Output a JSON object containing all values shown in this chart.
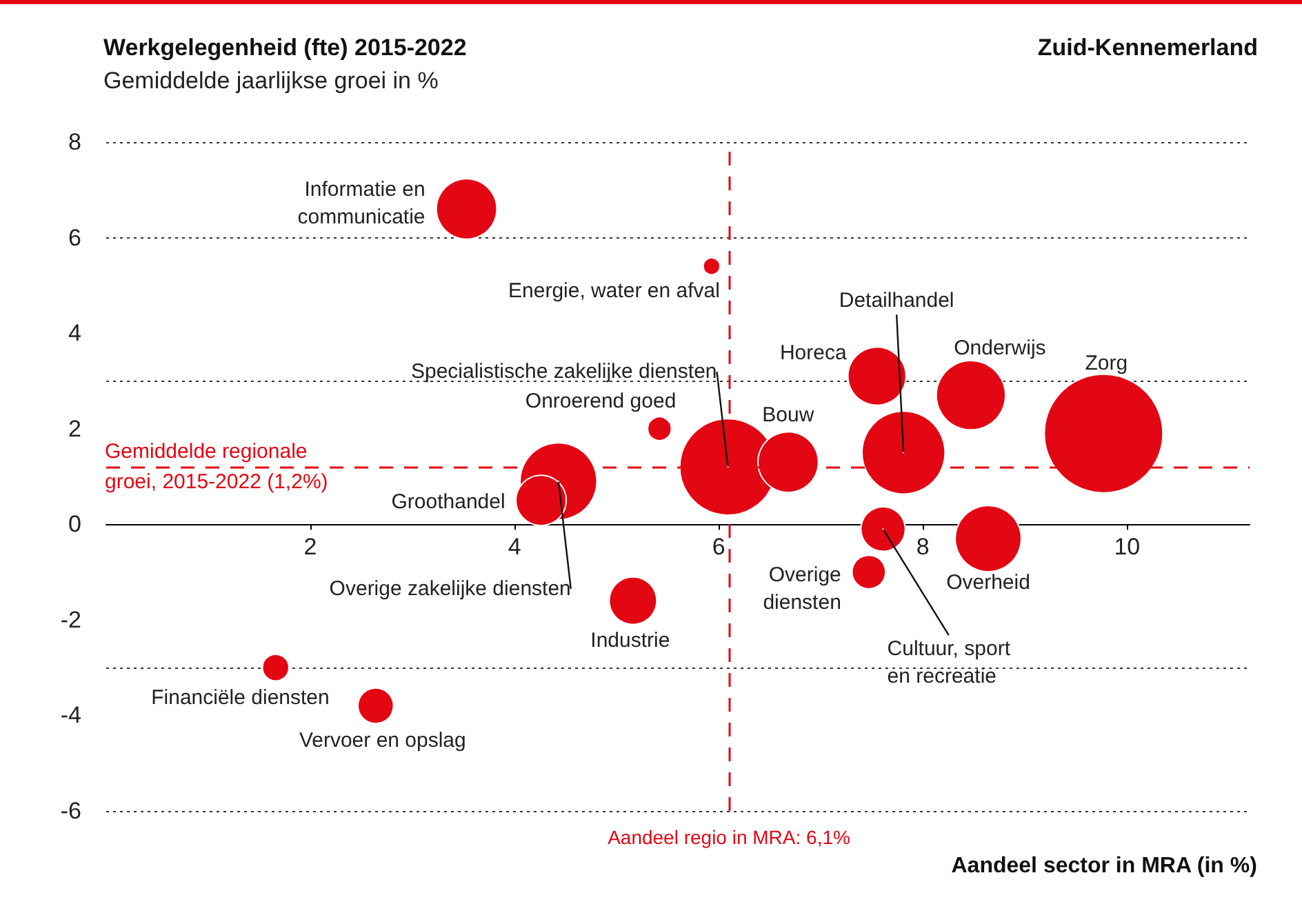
{
  "chart_data": {
    "type": "bubble",
    "title": "Werkgelegenheid (fte) 2015-2022",
    "ylabel": "Gemiddelde jaarlijkse groei in %",
    "xlabel": "Aandeel sector in MRA (in %)",
    "x": [
      3.53,
      5.93,
      7.55,
      7.81,
      8.47,
      9.77,
      5.42,
      6.09,
      6.68,
      4.43,
      4.26,
      7.47,
      7.61,
      8.64,
      5.16,
      1.66,
      2.64
    ],
    "series": [
      {
        "color": "#e30613",
        "values": [
          6.6,
          5.4,
          3.1,
          1.5,
          2.7,
          1.9,
          2.0,
          1.2,
          1.3,
          0.9,
          0.5,
          -1.0,
          -0.1,
          -0.3,
          -1.6,
          -3.0,
          -3.8
        ],
        "sizes": [
          0.26,
          0.02,
          0.24,
          0.49,
          0.34,
          1,
          0.04,
          0.66,
          0.26,
          0.42,
          0.18,
          0.08,
          0.14,
          0.31,
          0.16,
          0.05,
          0.09
        ]
      }
    ],
    "xlim": [
      0,
      11.2
    ],
    "xticks": [
      2,
      4,
      6,
      8,
      10
    ],
    "ylim": [
      -6,
      8
    ],
    "yticks": [
      -6,
      -4,
      -2,
      0,
      2,
      4,
      6,
      8
    ],
    "grid": "y",
    "ref_lines": [
      {
        "axis": "y",
        "value": 1.2,
        "label": "Gemiddelde regionale groei, 2015-2022 (1,2%)",
        "color": "#e30613",
        "line_style": "dashed"
      },
      {
        "axis": "x",
        "value": 6.1,
        "label": "Aandeel regio in MRA: 6,1%",
        "color": "#e30613",
        "line_style": "dashed"
      }
    ],
    "annotations": [
      "Zuid-Kennemerland",
      {
        "text": "Informatie en communicatie",
        "x": 3.53,
        "y": 6.6
      },
      {
        "text": "Energie, water en afval",
        "x": 5.93,
        "y": 5.4
      },
      {
        "text": "Horeca",
        "x": 7.55,
        "y": 3.1
      },
      {
        "text": "Detailhandel",
        "x": 7.81,
        "y": 1.5
      },
      {
        "text": "Onderwijs",
        "x": 8.47,
        "y": 2.7
      },
      {
        "text": "Zorg",
        "x": 9.77,
        "y": 1.9
      },
      {
        "text": "Onroerend goed",
        "x": 5.42,
        "y": 2.0
      },
      {
        "text": "Specialistische zakelijke diensten",
        "x": 6.09,
        "y": 1.2
      },
      {
        "text": "Bouw",
        "x": 6.68,
        "y": 1.3
      },
      {
        "text": "Overige zakelijke diensten",
        "x": 4.43,
        "y": 0.9
      },
      {
        "text": "Groothandel",
        "x": 4.26,
        "y": 0.5
      },
      {
        "text": "Overige diensten",
        "x": 7.47,
        "y": -1.0
      },
      {
        "text": "Cultuur, sport en recreatie",
        "x": 7.61,
        "y": -0.1
      },
      {
        "text": "Overheid",
        "x": 8.64,
        "y": -0.3
      },
      {
        "text": "Industrie",
        "x": 5.16,
        "y": -1.6
      },
      {
        "text": "Financiële diensten",
        "x": 1.66,
        "y": -3.0
      },
      {
        "text": "Vervoer en opslag",
        "x": 2.64,
        "y": -3.8
      }
    ]
  }
}
